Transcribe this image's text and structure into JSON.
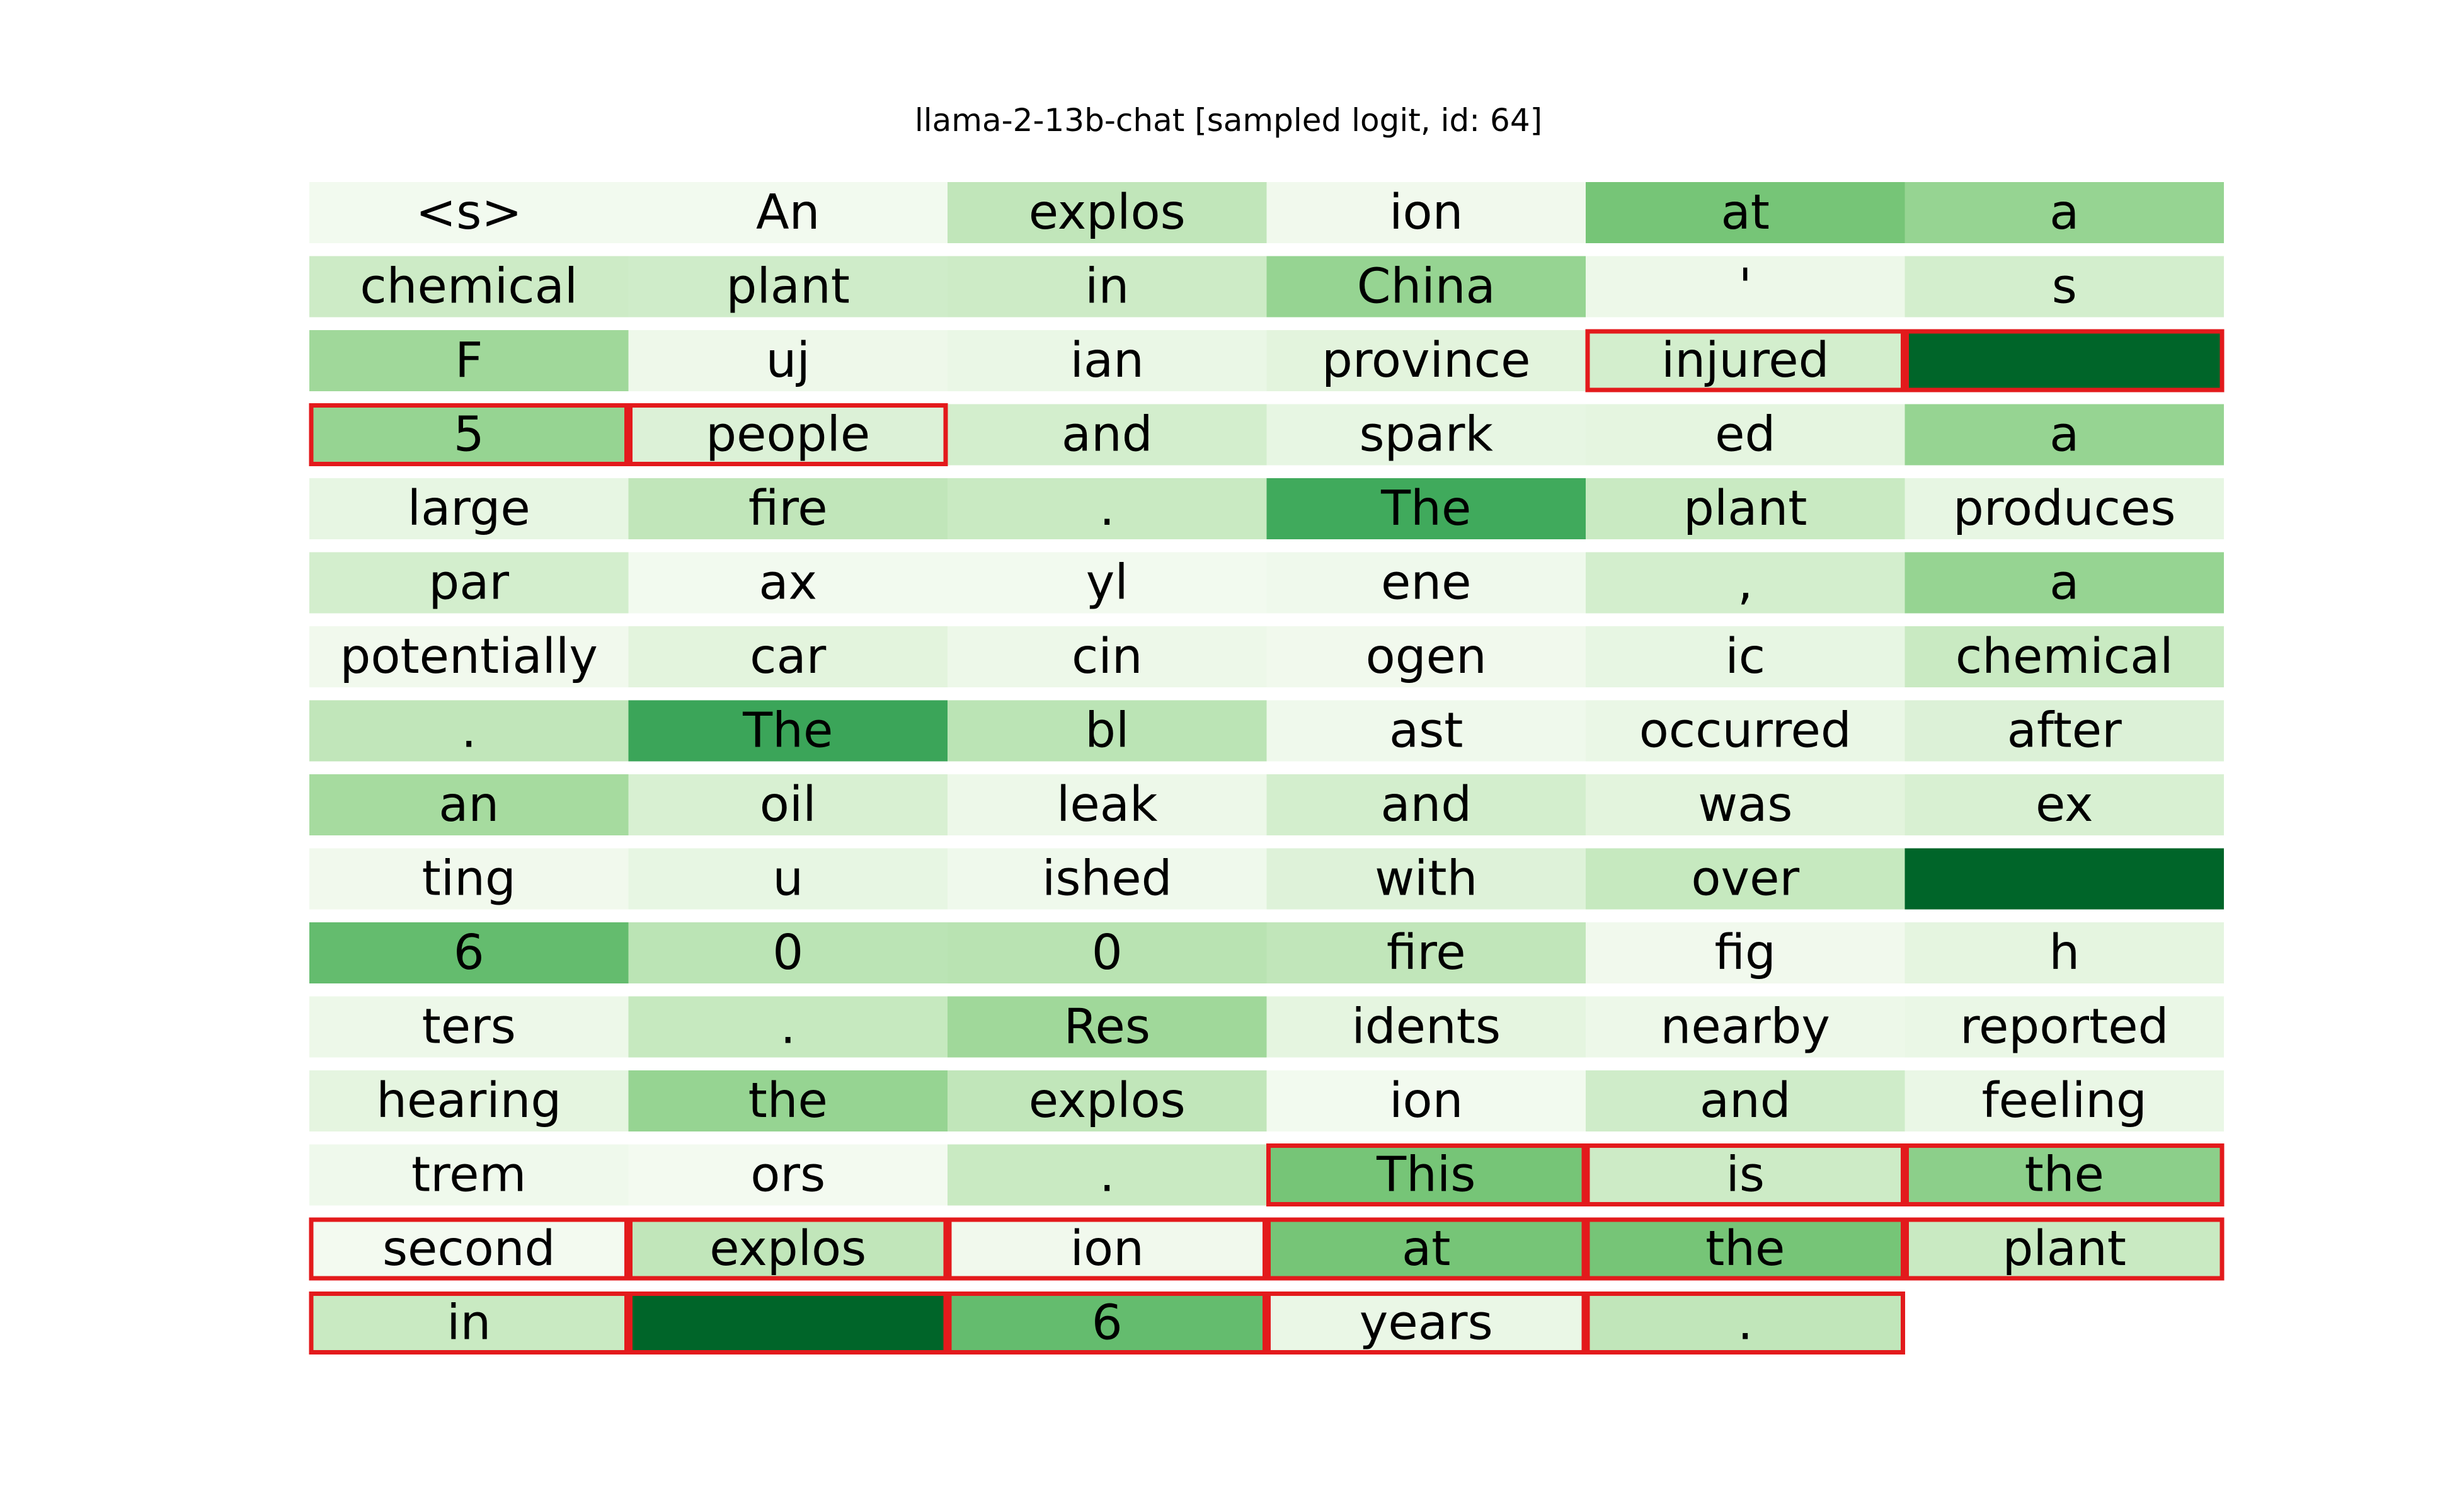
{
  "chart_data": {
    "type": "heatmap",
    "title": "llama-2-13b-chat [sampled logit, id: 64]",
    "columns": 6,
    "colormap": "Greens",
    "highlight_color": "#e31a1c",
    "cells": [
      {
        "token": "<s>",
        "value": 0.04,
        "highlight": false
      },
      {
        "token": "An",
        "value": 0.04,
        "highlight": false
      },
      {
        "token": "explos",
        "value": 0.3,
        "highlight": false
      },
      {
        "token": "ion",
        "value": 0.05,
        "highlight": false
      },
      {
        "token": "at",
        "value": 0.55,
        "highlight": false
      },
      {
        "token": "a",
        "value": 0.45,
        "highlight": false
      },
      {
        "token": "chemical",
        "value": 0.25,
        "highlight": false
      },
      {
        "token": "plant",
        "value": 0.24,
        "highlight": false
      },
      {
        "token": "in",
        "value": 0.25,
        "highlight": false
      },
      {
        "token": "China",
        "value": 0.45,
        "highlight": false
      },
      {
        "token": "'",
        "value": 0.08,
        "highlight": false
      },
      {
        "token": "s",
        "value": 0.22,
        "highlight": false
      },
      {
        "token": "F",
        "value": 0.42,
        "highlight": false
      },
      {
        "token": "uj",
        "value": 0.07,
        "highlight": false
      },
      {
        "token": "ian",
        "value": 0.1,
        "highlight": false
      },
      {
        "token": "province",
        "value": 0.15,
        "highlight": false
      },
      {
        "token": "injured",
        "value": 0.22,
        "highlight": true
      },
      {
        "token": "",
        "value": 1.0,
        "highlight": true
      },
      {
        "token": "5",
        "value": 0.45,
        "highlight": true
      },
      {
        "token": "people",
        "value": 0.18,
        "highlight": true
      },
      {
        "token": "and",
        "value": 0.22,
        "highlight": false
      },
      {
        "token": "spark",
        "value": 0.12,
        "highlight": false
      },
      {
        "token": "ed",
        "value": 0.14,
        "highlight": false
      },
      {
        "token": "a",
        "value": 0.45,
        "highlight": false
      },
      {
        "token": "large",
        "value": 0.12,
        "highlight": false
      },
      {
        "token": "fire",
        "value": 0.3,
        "highlight": false
      },
      {
        "token": ".",
        "value": 0.27,
        "highlight": false
      },
      {
        "token": "The",
        "value": 0.7,
        "highlight": false
      },
      {
        "token": "plant",
        "value": 0.27,
        "highlight": false
      },
      {
        "token": "produces",
        "value": 0.12,
        "highlight": false
      },
      {
        "token": "par",
        "value": 0.22,
        "highlight": false
      },
      {
        "token": "ax",
        "value": 0.04,
        "highlight": false
      },
      {
        "token": "yl",
        "value": 0.04,
        "highlight": false
      },
      {
        "token": "ene",
        "value": 0.06,
        "highlight": false
      },
      {
        "token": ",",
        "value": 0.22,
        "highlight": false
      },
      {
        "token": "a",
        "value": 0.45,
        "highlight": false
      },
      {
        "token": "potentially",
        "value": 0.05,
        "highlight": false
      },
      {
        "token": "car",
        "value": 0.15,
        "highlight": false
      },
      {
        "token": "cin",
        "value": 0.08,
        "highlight": false
      },
      {
        "token": "ogen",
        "value": 0.05,
        "highlight": false
      },
      {
        "token": "ic",
        "value": 0.12,
        "highlight": false
      },
      {
        "token": "chemical",
        "value": 0.27,
        "highlight": false
      },
      {
        "token": ".",
        "value": 0.3,
        "highlight": false
      },
      {
        "token": "The",
        "value": 0.72,
        "highlight": false
      },
      {
        "token": "bl",
        "value": 0.32,
        "highlight": false
      },
      {
        "token": "ast",
        "value": 0.06,
        "highlight": false
      },
      {
        "token": "occurred",
        "value": 0.1,
        "highlight": false
      },
      {
        "token": "after",
        "value": 0.18,
        "highlight": false
      },
      {
        "token": "an",
        "value": 0.4,
        "highlight": false
      },
      {
        "token": "oil",
        "value": 0.2,
        "highlight": false
      },
      {
        "token": "leak",
        "value": 0.08,
        "highlight": false
      },
      {
        "token": "and",
        "value": 0.22,
        "highlight": false
      },
      {
        "token": "was",
        "value": 0.15,
        "highlight": false
      },
      {
        "token": "ex",
        "value": 0.2,
        "highlight": false
      },
      {
        "token": "ting",
        "value": 0.05,
        "highlight": false
      },
      {
        "token": "u",
        "value": 0.12,
        "highlight": false
      },
      {
        "token": "ished",
        "value": 0.06,
        "highlight": false
      },
      {
        "token": "with",
        "value": 0.17,
        "highlight": false
      },
      {
        "token": "over",
        "value": 0.28,
        "highlight": false
      },
      {
        "token": "",
        "value": 1.0,
        "highlight": false
      },
      {
        "token": "6",
        "value": 0.6,
        "highlight": false
      },
      {
        "token": "0",
        "value": 0.32,
        "highlight": false
      },
      {
        "token": "0",
        "value": 0.33,
        "highlight": false
      },
      {
        "token": "fire",
        "value": 0.3,
        "highlight": false
      },
      {
        "token": "fig",
        "value": 0.05,
        "highlight": false
      },
      {
        "token": "h",
        "value": 0.14,
        "highlight": false
      },
      {
        "token": "ters",
        "value": 0.08,
        "highlight": false
      },
      {
        "token": ".",
        "value": 0.28,
        "highlight": false
      },
      {
        "token": "Res",
        "value": 0.42,
        "highlight": false
      },
      {
        "token": "idents",
        "value": 0.14,
        "highlight": false
      },
      {
        "token": "nearby",
        "value": 0.08,
        "highlight": false
      },
      {
        "token": "reported",
        "value": 0.1,
        "highlight": false
      },
      {
        "token": "hearing",
        "value": 0.14,
        "highlight": false
      },
      {
        "token": "the",
        "value": 0.45,
        "highlight": false
      },
      {
        "token": "explos",
        "value": 0.3,
        "highlight": false
      },
      {
        "token": "ion",
        "value": 0.04,
        "highlight": false
      },
      {
        "token": "and",
        "value": 0.24,
        "highlight": false
      },
      {
        "token": "feeling",
        "value": 0.1,
        "highlight": false
      },
      {
        "token": "trem",
        "value": 0.06,
        "highlight": false
      },
      {
        "token": "ors",
        "value": 0.03,
        "highlight": false
      },
      {
        "token": ".",
        "value": 0.27,
        "highlight": false
      },
      {
        "token": "This",
        "value": 0.55,
        "highlight": true
      },
      {
        "token": "is",
        "value": 0.25,
        "highlight": true
      },
      {
        "token": "the",
        "value": 0.48,
        "highlight": true
      },
      {
        "token": "second",
        "value": 0.03,
        "highlight": true
      },
      {
        "token": "explos",
        "value": 0.3,
        "highlight": true
      },
      {
        "token": "ion",
        "value": 0.05,
        "highlight": true
      },
      {
        "token": "at",
        "value": 0.55,
        "highlight": true
      },
      {
        "token": "the",
        "value": 0.55,
        "highlight": true
      },
      {
        "token": "plant",
        "value": 0.27,
        "highlight": true
      },
      {
        "token": "in",
        "value": 0.27,
        "highlight": true
      },
      {
        "token": "",
        "value": 1.0,
        "highlight": true
      },
      {
        "token": "6",
        "value": 0.6,
        "highlight": true
      },
      {
        "token": "years",
        "value": 0.1,
        "highlight": true
      },
      {
        "token": ".",
        "value": 0.3,
        "highlight": true
      }
    ]
  }
}
